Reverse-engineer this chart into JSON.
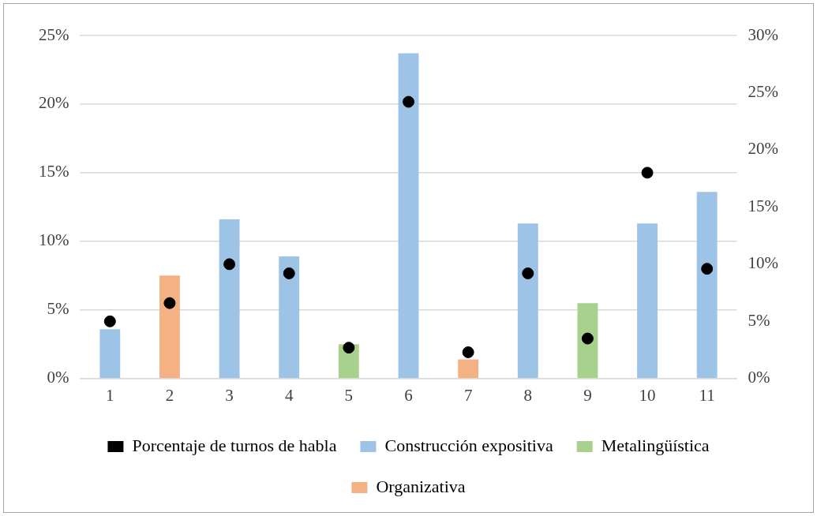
{
  "chart_data": {
    "type": "bar",
    "categories": [
      "1",
      "2",
      "3",
      "4",
      "5",
      "6",
      "7",
      "8",
      "9",
      "10",
      "11"
    ],
    "series": [
      {
        "name": "Porcentaje de turnos de habla",
        "type": "scatter",
        "axis": "y2",
        "color": "#000000",
        "x": [
          "1",
          "2",
          "3",
          "4",
          "5",
          "6",
          "7",
          "8",
          "9",
          "10",
          "11"
        ],
        "values": [
          5.0,
          6.6,
          10.0,
          9.2,
          2.7,
          24.2,
          2.3,
          9.2,
          3.5,
          18.0,
          9.6
        ]
      },
      {
        "name": "Construcción expositiva",
        "color": "#9dc3e6",
        "values": [
          3.6,
          null,
          11.6,
          8.9,
          null,
          23.7,
          null,
          11.3,
          null,
          11.3,
          13.6
        ]
      },
      {
        "name": "Metalingüística",
        "color": "#a9d18e",
        "values": [
          null,
          null,
          null,
          null,
          2.5,
          null,
          null,
          null,
          5.5,
          null,
          null
        ]
      },
      {
        "name": "Organizativa",
        "color": "#f4b183",
        "values": [
          null,
          7.5,
          null,
          null,
          null,
          null,
          1.4,
          null,
          null,
          null,
          null
        ]
      }
    ],
    "ylim": [
      0,
      25
    ],
    "yticks": [
      {
        "value": 0,
        "label": "0%"
      },
      {
        "value": 5,
        "label": "5%"
      },
      {
        "value": 10,
        "label": "10%"
      },
      {
        "value": 15,
        "label": "15%"
      },
      {
        "value": 20,
        "label": "20%"
      },
      {
        "value": 25,
        "label": "25%"
      }
    ],
    "y2lim": [
      0,
      30
    ],
    "y2ticks": [
      {
        "value": 0,
        "label": "0%"
      },
      {
        "value": 5,
        "label": "5%"
      },
      {
        "value": 10,
        "label": "10%"
      },
      {
        "value": 15,
        "label": "15%"
      },
      {
        "value": 20,
        "label": "20%"
      },
      {
        "value": 25,
        "label": "25%"
      },
      {
        "value": 30,
        "label": "30%"
      }
    ],
    "grid": "y",
    "legend": "bottom",
    "marker": "circle"
  }
}
